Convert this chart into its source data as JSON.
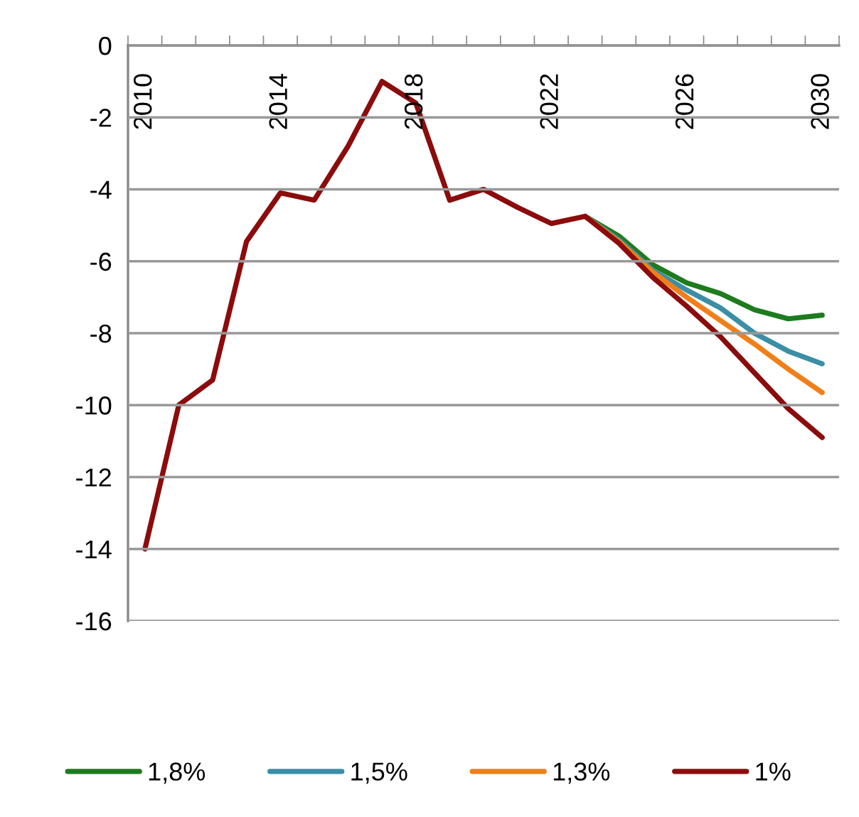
{
  "chart_data": {
    "type": "line",
    "categories": [
      "2010",
      null,
      null,
      null,
      "2014",
      null,
      null,
      null,
      "2018",
      null,
      null,
      null,
      "2022",
      null,
      null,
      null,
      "2026",
      null,
      null,
      null,
      "2030"
    ],
    "series": [
      {
        "name": "1,8%",
        "color": "#1e7b1e",
        "values": [
          null,
          null,
          null,
          null,
          null,
          null,
          null,
          null,
          null,
          null,
          null,
          null,
          null,
          -4.75,
          -5.3,
          -6.1,
          -6.6,
          -6.9,
          -7.35,
          -7.6,
          -7.5
        ]
      },
      {
        "name": "1,5%",
        "color": "#3b8ea5",
        "values": [
          null,
          null,
          null,
          null,
          null,
          null,
          null,
          null,
          null,
          null,
          null,
          null,
          null,
          -4.75,
          -5.4,
          -6.25,
          -6.8,
          -7.3,
          -8.0,
          -8.5,
          -8.85
        ]
      },
      {
        "name": "1,3%",
        "color": "#f07f1a",
        "values": [
          null,
          null,
          null,
          null,
          null,
          null,
          null,
          null,
          null,
          null,
          null,
          null,
          null,
          -4.75,
          -5.45,
          -6.3,
          -7.0,
          -7.65,
          -8.3,
          -9.0,
          -9.65
        ]
      },
      {
        "name": "1%",
        "color": "#8b0c0c",
        "values": [
          -14,
          -10,
          -9.3,
          -5.45,
          -4.1,
          -4.3,
          -2.8,
          -1.0,
          -1.6,
          -4.3,
          -4.0,
          -4.5,
          -4.95,
          -4.75,
          -5.5,
          -6.45,
          -7.25,
          -8.1,
          -9.1,
          -10.1,
          -10.9
        ]
      }
    ],
    "ylim": [
      -16,
      0
    ],
    "yticks": [
      0,
      -2,
      -4,
      -6,
      -8,
      -10,
      -12,
      -14,
      -16
    ],
    "grid": "y",
    "legend": "bottom",
    "line_style": "solid",
    "marker": "none"
  }
}
